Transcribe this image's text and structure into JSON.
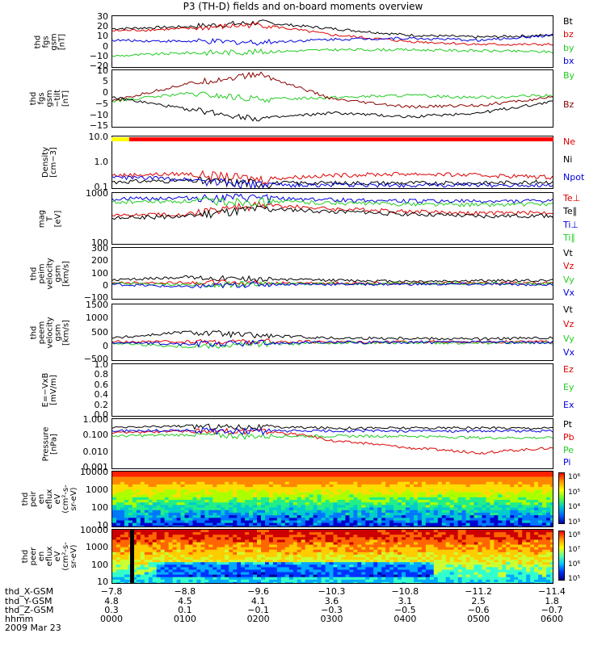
{
  "title": "P3 (TH-D) fields and on-board moments overview",
  "panels": [
    {
      "id": "fgs-gsm",
      "ylabel": "thd\nfgs\ngsm\n[nT]",
      "ticks": [
        "30",
        "20",
        "10",
        "0",
        "−10",
        "−20"
      ],
      "legend": [
        {
          "label": "Bt",
          "color": "#000000"
        },
        {
          "label": "bz",
          "color": "#dd0000"
        },
        {
          "label": "by",
          "color": "#22cc22"
        },
        {
          "label": "bx",
          "color": "#0000dd"
        }
      ]
    },
    {
      "id": "fgs-gsm-angles",
      "ylabel": "thd\nfgs\ngsm\n−tilt\n[nT]",
      "ticks": [
        "10",
        "5",
        "0",
        "−5",
        "−10",
        "−15"
      ],
      "legend": [
        {
          "label": "By",
          "color": "#22cc22"
        },
        {
          "label": "Bz",
          "color": "#880000"
        }
      ]
    },
    {
      "id": "density",
      "ylabel": "Density\n[cm−3]",
      "ticks": [
        "10.0",
        "1.0",
        "0.1"
      ],
      "legend": [
        {
          "label": "Ne",
          "color": "#dd0000"
        },
        {
          "label": "Ni",
          "color": "#000000"
        },
        {
          "label": "Npot",
          "color": "#0000dd"
        }
      ]
    },
    {
      "id": "temperature",
      "ylabel": "mag\nT\n[eV]",
      "ticks": [
        "1000",
        "100"
      ],
      "legend": [
        {
          "label": "Te⊥",
          "color": "#dd0000"
        },
        {
          "label": "Te∥",
          "color": "#000000"
        },
        {
          "label": "Ti⊥",
          "color": "#0000dd"
        },
        {
          "label": "Ti∥",
          "color": "#22cc22"
        }
      ]
    },
    {
      "id": "peim-velocity",
      "ylabel": "thd\npeim\nvelocity\ngsm\n[km/s]",
      "ticks": [
        "300",
        "200",
        "100",
        "0",
        "−100"
      ],
      "legend": [
        {
          "label": "Vt",
          "color": "#000000"
        },
        {
          "label": "Vz",
          "color": "#dd0000"
        },
        {
          "label": "Vy",
          "color": "#22cc22"
        },
        {
          "label": "Vx",
          "color": "#0000dd"
        }
      ]
    },
    {
      "id": "peem-velocity",
      "ylabel": "thd\npeem\nvelocity\ngsm\n[km/s]",
      "ticks": [
        "1500",
        "1000",
        "500",
        "0",
        "−500"
      ],
      "legend": [
        {
          "label": "Vt",
          "color": "#000000"
        },
        {
          "label": "Vz",
          "color": "#dd0000"
        },
        {
          "label": "Vy",
          "color": "#22cc22"
        },
        {
          "label": "Vx",
          "color": "#0000dd"
        }
      ]
    },
    {
      "id": "efield",
      "ylabel": "E=−VxB\n[mV/m]",
      "ticks": [
        "1.0",
        "0.8",
        "0.6",
        "0.4",
        "0.2",
        "0.0"
      ],
      "legend": [
        {
          "label": "Ez",
          "color": "#dd0000"
        },
        {
          "label": "Ey",
          "color": "#22cc22"
        },
        {
          "label": "Ex",
          "color": "#0000dd"
        }
      ]
    },
    {
      "id": "pressure",
      "ylabel": "Pressure\n[nPa]",
      "ticks": [
        "1.000",
        "0.100",
        "0.010",
        "0.001"
      ],
      "legend": [
        {
          "label": "Pt",
          "color": "#000000"
        },
        {
          "label": "Pb",
          "color": "#dd0000"
        },
        {
          "label": "Pe",
          "color": "#22cc22"
        },
        {
          "label": "Pi",
          "color": "#0000dd"
        }
      ]
    },
    {
      "id": "peir-spectrogram",
      "ylabel": "thd\npeir\nen\neflux\neV\n(cm²-s-\nsr-eV)",
      "ticks": [
        "10000",
        "1000",
        "100",
        "10"
      ],
      "colorbar": [
        "10⁶",
        "10⁵",
        "10⁴",
        "10³"
      ]
    },
    {
      "id": "peer-spectrogram",
      "ylabel": "thd\npeer\nen\neflux\neV\n(cm²-s-\nsr-eV)",
      "ticks": [
        "10000",
        "1000",
        "100",
        "10"
      ],
      "colorbar": [
        "10⁸",
        "10⁷",
        "10⁶",
        "10⁵"
      ]
    }
  ],
  "xaxis": {
    "row_labels": [
      "thd_X-GSM",
      "thd_Y-GSM",
      "thd_Z-GSM",
      "hhmm",
      "2009 Mar 23"
    ],
    "columns": [
      {
        "x": "−7.8",
        "y": "4.8",
        "z": "0.3",
        "t": "0000"
      },
      {
        "x": "−8.8",
        "y": "4.5",
        "z": "0.1",
        "t": "0100"
      },
      {
        "x": "−9.6",
        "y": "4.1",
        "z": "−0.1",
        "t": "0200"
      },
      {
        "x": "−10.3",
        "y": "3.6",
        "z": "−0.3",
        "t": "0300"
      },
      {
        "x": "−10.8",
        "y": "3.1",
        "z": "−0.5",
        "t": "0400"
      },
      {
        "x": "−11.2",
        "y": "2.5",
        "z": "−0.6",
        "t": "0500"
      },
      {
        "x": "−11.4",
        "y": "1.8",
        "z": "−0.7",
        "t": "0600"
      }
    ]
  },
  "chart_data": [
    {
      "type": "line",
      "title": "P3 (TH-D) fields and on-board moments overview",
      "ylabel": "thd fgs gsm [nT]",
      "ylim": [
        -20,
        30
      ],
      "x": [
        "0000",
        "0100",
        "0200",
        "0300",
        "0400",
        "0500",
        "0600"
      ],
      "series": [
        {
          "name": "Bt",
          "color": "#000000",
          "values": [
            18,
            20,
            24,
            18,
            12,
            10,
            12
          ]
        },
        {
          "name": "bz",
          "color": "#dd0000",
          "values": [
            16,
            18,
            22,
            12,
            6,
            3,
            3
          ]
        },
        {
          "name": "by",
          "color": "#22cc22",
          "values": [
            -8,
            -5,
            -4,
            -2,
            -2,
            -3,
            -4
          ]
        },
        {
          "name": "bx",
          "color": "#0000dd",
          "values": [
            7,
            6,
            5,
            8,
            9,
            7,
            12
          ]
        }
      ]
    },
    {
      "type": "line",
      "ylabel": "thd fgs gsm [nT]",
      "ylim": [
        -18,
        12
      ],
      "x": [
        "0000",
        "0100",
        "0200",
        "0300",
        "0400",
        "0500",
        "0600"
      ],
      "series": [
        {
          "name": "By",
          "color": "#22cc22",
          "values": [
            -4,
            0,
            -3,
            -2,
            -1,
            -2,
            -1
          ]
        },
        {
          "name": "Bz",
          "color": "#880000",
          "values": [
            -4,
            5,
            10,
            -3,
            -7,
            -6,
            -2
          ]
        },
        {
          "color": "#000000",
          "values": [
            -2,
            -8,
            -13,
            -10,
            -12,
            -10,
            -4
          ]
        }
      ]
    },
    {
      "type": "line",
      "ylabel": "Density [cm−3]",
      "ylim": [
        0.1,
        10
      ],
      "log": true,
      "x": [
        "0000",
        "0100",
        "0200",
        "0300",
        "0400",
        "0500",
        "0600"
      ],
      "series": [
        {
          "name": "Ne",
          "color": "#dd0000",
          "values": [
            0.35,
            0.4,
            0.25,
            0.35,
            0.4,
            0.35,
            0.3
          ]
        },
        {
          "name": "Ni",
          "color": "#000000",
          "values": [
            0.2,
            0.22,
            0.18,
            0.18,
            0.18,
            0.18,
            0.2
          ]
        },
        {
          "name": "Npot",
          "color": "#0000dd",
          "values": [
            0.3,
            0.25,
            0.15,
            0.15,
            0.15,
            0.15,
            0.15
          ]
        }
      ]
    },
    {
      "type": "line",
      "ylabel": "mag T [eV]",
      "ylim": [
        100,
        10000
      ],
      "log": true,
      "x": [
        "0000",
        "0100",
        "0200",
        "0300",
        "0400",
        "0500",
        "0600"
      ],
      "series": [
        {
          "name": "Te⊥",
          "color": "#dd0000",
          "values": [
            1400,
            1600,
            3500,
            2500,
            2000,
            1700,
            1800
          ]
        },
        {
          "name": "Te∥",
          "color": "#000000",
          "values": [
            1100,
            1300,
            2500,
            2000,
            1600,
            1300,
            1400
          ]
        },
        {
          "name": "Ti⊥",
          "color": "#0000dd",
          "values": [
            6000,
            6500,
            6500,
            5500,
            5000,
            4800,
            5000
          ]
        },
        {
          "name": "Ti∥",
          "color": "#22cc22",
          "values": [
            4500,
            4800,
            5000,
            4200,
            3800,
            3600,
            3800
          ]
        }
      ]
    },
    {
      "type": "line",
      "ylabel": "thd peim velocity gsm [km/s]",
      "ylim": [
        -150,
        320
      ],
      "x": [
        "0000",
        "0100",
        "0200",
        "0300",
        "0400",
        "0500",
        "0600"
      ],
      "series": [
        {
          "name": "Vt",
          "color": "#000000",
          "values": [
            30,
            60,
            40,
            30,
            20,
            25,
            30
          ]
        },
        {
          "name": "Vz",
          "color": "#dd0000",
          "values": [
            5,
            10,
            5,
            5,
            5,
            5,
            5
          ]
        },
        {
          "name": "Vy",
          "color": "#22cc22",
          "values": [
            0,
            -10,
            -5,
            0,
            0,
            0,
            0
          ]
        },
        {
          "name": "Vx",
          "color": "#0000dd",
          "values": [
            -5,
            -30,
            -5,
            -5,
            -5,
            -5,
            -10
          ]
        }
      ]
    },
    {
      "type": "line",
      "ylabel": "thd peem velocity gsm [km/s]",
      "ylim": [
        -800,
        1500
      ],
      "x": [
        "0000",
        "0100",
        "0200",
        "0300",
        "0400",
        "0500",
        "0600"
      ],
      "series": [
        {
          "name": "Vt",
          "color": "#000000",
          "values": [
            150,
            400,
            250,
            150,
            150,
            120,
            150
          ]
        },
        {
          "name": "Vz",
          "color": "#dd0000",
          "values": [
            0,
            0,
            0,
            0,
            0,
            0,
            0
          ]
        },
        {
          "name": "Vy",
          "color": "#22cc22",
          "values": [
            -50,
            -200,
            -100,
            -40,
            -30,
            -40,
            -40
          ]
        },
        {
          "name": "Vx",
          "color": "#0000dd",
          "values": [
            -20,
            -100,
            -50,
            -20,
            -20,
            -20,
            -30
          ]
        }
      ]
    },
    {
      "type": "line",
      "ylabel": "E=−VxB [mV/m]",
      "ylim": [
        0,
        1
      ],
      "series": []
    },
    {
      "type": "line",
      "ylabel": "Pressure [nPa]",
      "ylim": [
        0.001,
        1
      ],
      "log": true,
      "x": [
        "0000",
        "0100",
        "0200",
        "0300",
        "0400",
        "0500",
        "0600"
      ],
      "series": [
        {
          "name": "Pt",
          "color": "#000000",
          "values": [
            0.3,
            0.4,
            0.35,
            0.3,
            0.3,
            0.3,
            0.3
          ]
        },
        {
          "name": "Pb",
          "color": "#dd0000",
          "values": [
            0.15,
            0.2,
            0.2,
            0.05,
            0.02,
            0.01,
            0.02
          ]
        },
        {
          "name": "Pe",
          "color": "#22cc22",
          "values": [
            0.1,
            0.12,
            0.1,
            0.1,
            0.1,
            0.08,
            0.08
          ]
        },
        {
          "name": "Pi",
          "color": "#0000dd",
          "values": [
            0.2,
            0.22,
            0.2,
            0.2,
            0.2,
            0.2,
            0.2
          ]
        }
      ]
    },
    {
      "type": "heatmap",
      "ylabel": "thd peir en eflux",
      "ylim": [
        5,
        30000
      ],
      "log": true,
      "colorbar": [
        "10³",
        "10⁴",
        "10⁵",
        "10⁶"
      ]
    },
    {
      "type": "heatmap",
      "ylabel": "thd peer en eflux",
      "ylim": [
        8,
        30000
      ],
      "log": true,
      "colorbar": [
        "10⁵",
        "10⁶",
        "10⁷",
        "10⁸"
      ]
    }
  ]
}
